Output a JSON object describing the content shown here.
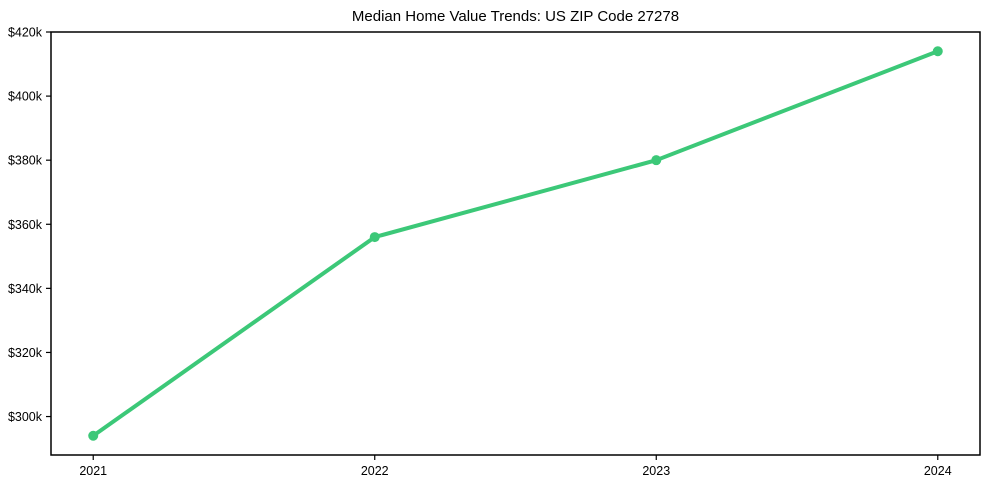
{
  "figure": {
    "background_color": "#ffffff",
    "frame_color": "#000000",
    "tick_color": "#000000",
    "text_color": "#000000"
  },
  "chart_data": {
    "type": "line",
    "title": "Median Home Value Trends: US ZIP Code 27278",
    "xlabel": "",
    "ylabel": "",
    "x": [
      2021,
      2022,
      2023,
      2024
    ],
    "x_tick_labels": [
      "2021",
      "2022",
      "2023",
      "2024"
    ],
    "series": [
      {
        "name": "median-home-value",
        "values": [
          294000,
          356000,
          380000,
          414000
        ],
        "color": "#3cc878",
        "line_width": 4,
        "marker": "circle",
        "marker_radius": 5
      }
    ],
    "y_ticks": [
      300000,
      320000,
      340000,
      360000,
      380000,
      400000,
      420000
    ],
    "y_tick_labels": [
      "$300k",
      "$320k",
      "$340k",
      "$360k",
      "$380k",
      "$400k",
      "$420k"
    ],
    "xlim": [
      2020.85,
      2024.15
    ],
    "ylim": [
      288000,
      420000
    ],
    "grid": false,
    "legend": null
  }
}
